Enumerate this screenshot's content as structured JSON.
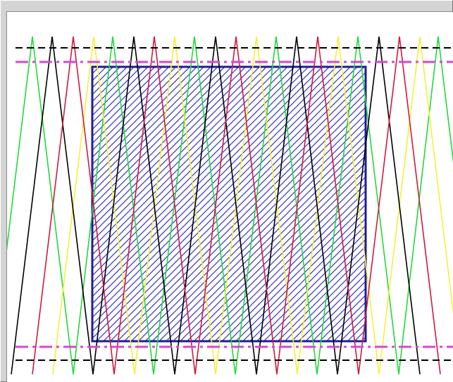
{
  "canvas": {
    "background": "#ffffff",
    "pattern": "moire-interference",
    "line_colors": {
      "black": "#000000",
      "red": "#d01a3c",
      "green": "#22d93a",
      "yellow": "#f4f03a",
      "magenta": "#d946d6",
      "navy": "#1d1d9a",
      "hatch": "#3030c8"
    }
  }
}
